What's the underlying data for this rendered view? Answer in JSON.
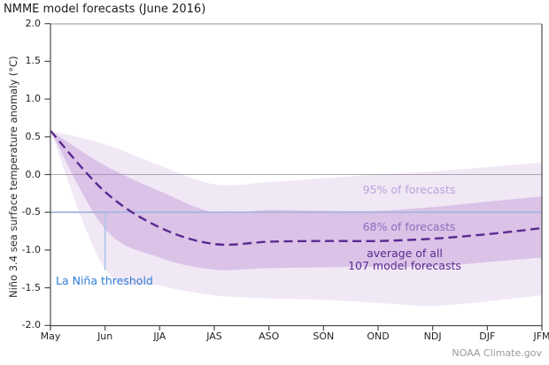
{
  "title": "NMME model forecasts (June 2016)",
  "credit": "NOAA Climate.gov",
  "axes": {
    "y_label": "Niño 3.4 sea surface temperature anomaly (°C)",
    "y_ticks": [
      "2.0",
      "1.5",
      "1.0",
      "0.5",
      "0.0",
      "-0.5",
      "-1.0",
      "-1.5",
      "-2.0"
    ],
    "x_ticks": [
      "May",
      "Jun",
      "JJA",
      "JAS",
      "ASO",
      "SON",
      "OND",
      "NDJ",
      "DJF",
      "JFM"
    ]
  },
  "annotations": {
    "band95_label": "95% of forecasts",
    "band68_label": "68% of forecasts",
    "mean_label_line1": "average of all",
    "mean_label_line2": "107 model forecasts",
    "threshold_label": "La Niña threshold"
  },
  "colors": {
    "mean_line": "#5b2a91",
    "band95_fill": "rgba(178,128,205,0.18)",
    "band68_fill": "rgba(164,108,196,0.30)",
    "threshold_line": "#aab5e0",
    "threshold_vline": "#a9c4e8",
    "threshold_text": "#2f7ed8",
    "zero_gridline": "#ababab",
    "axis_dark": "#4a4a4a",
    "axis_top": "#a6a6a6",
    "label95_text": "#b9a3d9",
    "label68_text": "#8f6bbd",
    "label_mean_text": "#5b2a91"
  },
  "chart_data": {
    "type": "line",
    "title": "NMME model forecasts (June 2016)",
    "xlabel": "",
    "ylabel": "Niño 3.4 sea surface temperature anomaly (°C)",
    "ylim": [
      -2.0,
      2.0
    ],
    "ytick_step": 0.5,
    "grid": "horizontal line at 0 only",
    "legend_position": "inline annotations inside plot",
    "categories": [
      "May",
      "Jun",
      "JJA",
      "JAS",
      "ASO",
      "SON",
      "OND",
      "NDJ",
      "DJF",
      "JFM"
    ],
    "series": [
      {
        "name": "average of all 107 model forecasts",
        "style": "dashed",
        "color": "#5b2a91",
        "values": [
          0.58,
          -0.23,
          -0.7,
          -0.92,
          -0.89,
          -0.88,
          -0.88,
          -0.85,
          -0.79,
          -0.71
        ]
      },
      {
        "name": "68% of forecasts (upper bound)",
        "style": "band-edge",
        "values": [
          0.58,
          0.12,
          -0.22,
          -0.5,
          -0.47,
          -0.48,
          -0.48,
          -0.43,
          -0.36,
          -0.29
        ]
      },
      {
        "name": "68% of forecasts (lower bound)",
        "style": "band-edge",
        "values": [
          0.58,
          -0.72,
          -1.1,
          -1.26,
          -1.24,
          -1.23,
          -1.22,
          -1.22,
          -1.16,
          -1.1
        ]
      },
      {
        "name": "95% of forecasts (upper bound)",
        "style": "band-edge",
        "values": [
          0.58,
          0.4,
          0.12,
          -0.13,
          -0.1,
          -0.05,
          0.0,
          0.04,
          0.1,
          0.16
        ]
      },
      {
        "name": "95% of forecasts (lower bound)",
        "style": "band-edge",
        "values": [
          0.58,
          -1.25,
          -1.47,
          -1.6,
          -1.64,
          -1.66,
          -1.7,
          -1.74,
          -1.68,
          -1.6
        ]
      }
    ],
    "reference_lines": [
      {
        "label": "La Niña threshold",
        "value": -0.5
      },
      {
        "label": "zero anomaly",
        "value": 0.0
      }
    ]
  }
}
